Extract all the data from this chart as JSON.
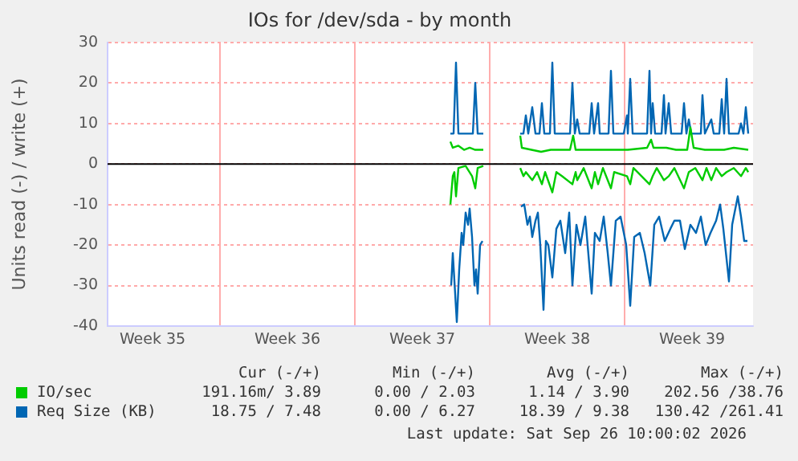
{
  "chart_data": {
    "type": "line",
    "title": "IOs for /dev/sda - by month",
    "ylabel": "Units read (-) / write (+)",
    "xlim": [
      "2026-08-24T04:00",
      "2026-09-26T16:00"
    ],
    "xticks": [
      {
        "value": "2026-08-26T12:00",
        "label": "Week 35"
      },
      {
        "value": "2026-08-30T00:00",
        "label": null
      },
      {
        "value": "2026-09-02T12:00",
        "label": "Week 36"
      },
      {
        "value": "2026-09-06T00:00",
        "label": null
      },
      {
        "value": "2026-09-09T12:00",
        "label": "Week 37"
      },
      {
        "value": "2026-09-13T00:00",
        "label": null
      },
      {
        "value": "2026-09-16T12:00",
        "label": "Week 38"
      },
      {
        "value": "2026-09-20T00:00",
        "label": null
      },
      {
        "value": "2026-09-23T12:00",
        "label": "Week 39"
      }
    ],
    "ylim": [
      -40,
      30
    ],
    "yticks": [
      -40,
      -30,
      -20,
      -10,
      0,
      10,
      20,
      30
    ],
    "grid": true,
    "legend": "bottom",
    "marker": "none",
    "line_style": "solid",
    "ref_lines": [
      {
        "axis": "y",
        "value": 0,
        "color": "#000000"
      }
    ],
    "series": [
      {
        "name": "IO/sec",
        "color": "#00cc00",
        "x": [
          "2026-09-10T23:00",
          "2026-09-11T02:00",
          "2026-09-11T09:00",
          "2026-09-11T16:00",
          "2026-09-11T23:00",
          "2026-09-12T06:00",
          "2026-09-12T16:00",
          "2026-09-13T16:00",
          "2026-09-14T14:00",
          "2026-09-14T16:00",
          "2026-09-15T04:00",
          "2026-09-15T16:00",
          "2026-09-16T04:00",
          "2026-09-16T16:00",
          "2026-09-17T04:00",
          "2026-09-17T08:00",
          "2026-09-17T11:00",
          "2026-09-18T04:00",
          "2026-09-19T04:00",
          "2026-09-20T04:00",
          "2026-09-21T04:00",
          "2026-09-21T09:00",
          "2026-09-21T12:00",
          "2026-09-22T04:00",
          "2026-09-22T16:00",
          "2026-09-23T06:00",
          "2026-09-23T10:00",
          "2026-09-23T14:00",
          "2026-09-24T04:00",
          "2026-09-24T16:00",
          "2026-09-25T04:00",
          "2026-09-25T16:00",
          "2026-09-26T10:00"
        ],
        "values": [
          5.5,
          4,
          4.5,
          3.5,
          4,
          3.5,
          3.5,
          null,
          7,
          4,
          3.5,
          3,
          3.5,
          3.5,
          3.5,
          7,
          3.5,
          3.5,
          3.5,
          3.5,
          4,
          6,
          4,
          4,
          3.5,
          3.5,
          9,
          4,
          3.5,
          3.5,
          3.5,
          4,
          3.5
        ]
      },
      {
        "color": "#00cc00",
        "x": [
          "2026-09-10T23:00",
          "2026-09-11T02:00",
          "2026-09-11T04:00",
          "2026-09-11T06:00",
          "2026-09-11T09:00",
          "2026-09-11T18:00",
          "2026-09-12T02:00",
          "2026-09-12T06:00",
          "2026-09-12T09:00",
          "2026-09-12T16:00",
          "2026-09-13T16:00",
          "2026-09-14T14:00",
          "2026-09-14T18:00",
          "2026-09-14T21:00",
          "2026-09-15T05:00",
          "2026-09-15T11:00",
          "2026-09-15T17:00",
          "2026-09-15T21:00",
          "2026-09-16T06:00",
          "2026-09-16T11:00",
          "2026-09-16T18:00",
          "2026-09-17T07:00",
          "2026-09-17T11:00",
          "2026-09-17T13:00",
          "2026-09-17T21:00",
          "2026-09-18T07:00",
          "2026-09-18T11:00",
          "2026-09-18T15:00",
          "2026-09-18T21:00",
          "2026-09-19T07:00",
          "2026-09-19T11:00",
          "2026-09-20T03:00",
          "2026-09-20T07:00",
          "2026-09-20T11:00",
          "2026-09-21T07:00",
          "2026-09-21T11:00",
          "2026-09-21T16:00",
          "2026-09-22T01:00",
          "2026-09-22T07:00",
          "2026-09-22T14:00",
          "2026-09-23T02:00",
          "2026-09-23T08:00",
          "2026-09-23T16:00",
          "2026-09-24T01:00",
          "2026-09-24T06:00",
          "2026-09-24T12:00",
          "2026-09-24T18:00",
          "2026-09-25T01:00",
          "2026-09-25T07:00",
          "2026-09-25T16:00",
          "2026-09-26T01:00",
          "2026-09-26T07:00",
          "2026-09-26T10:00"
        ],
        "values": [
          -10,
          -3,
          -2,
          -8,
          -1,
          -0.5,
          -3,
          -6,
          -1,
          -0.5,
          null,
          -1,
          -3,
          -2,
          -4,
          -2,
          -5,
          -2,
          -7,
          -2,
          -3,
          -5,
          -2,
          -4,
          -1,
          -6,
          -2,
          -5,
          -1,
          -6,
          -2,
          -3,
          -5,
          -1,
          -5,
          -3,
          -1,
          -4,
          -3,
          -1,
          -6,
          -2,
          -1,
          -4,
          -1,
          -4,
          -1,
          -3,
          -2,
          -1,
          -3,
          -1,
          -2
        ]
      },
      {
        "name": "Req Size (KB)",
        "color": "#0066b3",
        "x": [
          "2026-09-10T23:00",
          "2026-09-11T03:00",
          "2026-09-11T06:00",
          "2026-09-11T09:00",
          "2026-09-12T03:00",
          "2026-09-12T06:00",
          "2026-09-12T09:00",
          "2026-09-12T16:00",
          "2026-09-13T16:00",
          "2026-09-14T14:00",
          "2026-09-14T18:00",
          "2026-09-14T21:00",
          "2026-09-15T00:00",
          "2026-09-15T05:00",
          "2026-09-15T09:00",
          "2026-09-15T14:00",
          "2026-09-15T17:00",
          "2026-09-15T20:00",
          "2026-09-16T03:00",
          "2026-09-16T06:00",
          "2026-09-16T09:00",
          "2026-09-17T04:00",
          "2026-09-17T07:00",
          "2026-09-17T10:00",
          "2026-09-17T13:00",
          "2026-09-17T16:00",
          "2026-09-18T04:00",
          "2026-09-18T07:00",
          "2026-09-18T10:00",
          "2026-09-18T15:00",
          "2026-09-18T17:00",
          "2026-09-19T04:00",
          "2026-09-19T07:00",
          "2026-09-19T10:00",
          "2026-09-19T23:00",
          "2026-09-20T03:00",
          "2026-09-20T04:00",
          "2026-09-20T07:00",
          "2026-09-20T10:00",
          "2026-09-21T04:00",
          "2026-09-21T07:00",
          "2026-09-21T09:00",
          "2026-09-21T11:00",
          "2026-09-21T14:00",
          "2026-09-21T22:00",
          "2026-09-22T01:00",
          "2026-09-22T03:00",
          "2026-09-22T07:00",
          "2026-09-22T10:00",
          "2026-09-22T23:00",
          "2026-09-23T02:00",
          "2026-09-23T05:00",
          "2026-09-23T08:00",
          "2026-09-23T11:00",
          "2026-09-23T23:00",
          "2026-09-24T01:00",
          "2026-09-24T04:00",
          "2026-09-24T12:00",
          "2026-09-24T15:00",
          "2026-09-24T22:00",
          "2026-09-25T01:00",
          "2026-09-25T04:00",
          "2026-09-25T07:00",
          "2026-09-25T10:00",
          "2026-09-25T22:00",
          "2026-09-26T01:00",
          "2026-09-26T04:00",
          "2026-09-26T07:00",
          "2026-09-26T10:00"
        ],
        "values": [
          7.5,
          7.5,
          25,
          7.5,
          7.5,
          20,
          7.5,
          7.5,
          null,
          7.5,
          7.5,
          12,
          7.5,
          14,
          7.5,
          7.5,
          15,
          7.5,
          7.5,
          25,
          7.5,
          7.5,
          20,
          7.5,
          11,
          7.5,
          7.5,
          15,
          7.5,
          15,
          7.5,
          7.5,
          23,
          7.5,
          7.5,
          12,
          7.5,
          21,
          7.5,
          7.5,
          23,
          7.5,
          15,
          7.5,
          7.5,
          17,
          7.5,
          15,
          7.5,
          7.5,
          15,
          7.5,
          11,
          7.5,
          7.5,
          17,
          7.5,
          11,
          7.5,
          7.5,
          16,
          7.5,
          21,
          7.5,
          7.5,
          10,
          7.5,
          14,
          7.5
        ]
      },
      {
        "color": "#0066b3",
        "x": [
          "2026-09-11T00:00",
          "2026-09-11T02:00",
          "2026-09-11T07:00",
          "2026-09-11T10:00",
          "2026-09-11T13:00",
          "2026-09-11T15:00",
          "2026-09-11T18:00",
          "2026-09-11T21:00",
          "2026-09-11T23:00",
          "2026-09-12T02:00",
          "2026-09-12T05:00",
          "2026-09-12T07:00",
          "2026-09-12T09:00",
          "2026-09-12T12:00",
          "2026-09-12T15:00",
          "2026-09-13T16:00",
          "2026-09-14T15:00",
          "2026-09-14T19:00",
          "2026-09-14T23:00",
          "2026-09-15T02:00",
          "2026-09-15T05:00",
          "2026-09-15T09:00",
          "2026-09-15T12:00",
          "2026-09-15T15:00",
          "2026-09-15T19:00",
          "2026-09-15T22:00",
          "2026-09-16T01:00",
          "2026-09-16T06:00",
          "2026-09-16T11:00",
          "2026-09-16T16:00",
          "2026-09-16T22:00",
          "2026-09-17T03:00",
          "2026-09-17T07:00",
          "2026-09-17T12:00",
          "2026-09-17T17:00",
          "2026-09-17T23:00",
          "2026-09-18T07:00",
          "2026-09-18T11:00",
          "2026-09-18T17:00",
          "2026-09-18T22:00",
          "2026-09-19T03:00",
          "2026-09-19T07:00",
          "2026-09-19T13:00",
          "2026-09-19T19:00",
          "2026-09-20T02:00",
          "2026-09-20T07:00",
          "2026-09-20T12:00",
          "2026-09-20T19:00",
          "2026-09-21T01:00",
          "2026-09-21T08:00",
          "2026-09-21T13:00",
          "2026-09-21T19:00",
          "2026-09-22T02:00",
          "2026-09-22T09:00",
          "2026-09-22T14:00",
          "2026-09-22T21:00",
          "2026-09-23T03:00",
          "2026-09-23T10:00",
          "2026-09-23T17:00",
          "2026-09-23T23:00",
          "2026-09-24T05:00",
          "2026-09-24T11:00",
          "2026-09-24T18:00",
          "2026-09-24T23:00",
          "2026-09-25T03:00",
          "2026-09-25T10:00",
          "2026-09-25T14:00",
          "2026-09-25T21:00",
          "2026-09-26T01:00",
          "2026-09-26T05:00",
          "2026-09-26T09:00"
        ],
        "values": [
          -30,
          -22,
          -39,
          -26,
          -17,
          -20,
          -12,
          -15,
          -11,
          -18,
          -30,
          -26,
          -32,
          -20,
          -19,
          null,
          -10.5,
          -10,
          -15,
          -13,
          -18,
          -14,
          -12,
          -20,
          -36,
          -19,
          -20,
          -28,
          -16,
          -14,
          -22,
          -12,
          -30,
          -15,
          -20,
          -13,
          -32,
          -17,
          -19,
          -13,
          -22,
          -30,
          -14,
          -13,
          -20,
          -35,
          -18,
          -17,
          -22,
          -30,
          -15,
          -13,
          -19,
          -16,
          -14,
          -14,
          -21,
          -15,
          -17,
          -13,
          -20,
          -17,
          -14,
          -10,
          -16,
          -29,
          -15,
          -8,
          -13,
          -19,
          -19
        ]
      }
    ],
    "annotations": [
      "Cur (-/+)",
      "Min (-/+)",
      "Avg (-/+)",
      "Max (-/+)",
      "191.16m/ 3.89",
      "0.00 / 2.03",
      "1.14 / 3.90",
      "202.56 /38.76",
      "18.75 / 7.48",
      "0.00 / 6.27",
      "18.39 / 9.38",
      "130.42 /261.41",
      "Last update: Sat Sep 26 10:00:02 2026"
    ]
  }
}
